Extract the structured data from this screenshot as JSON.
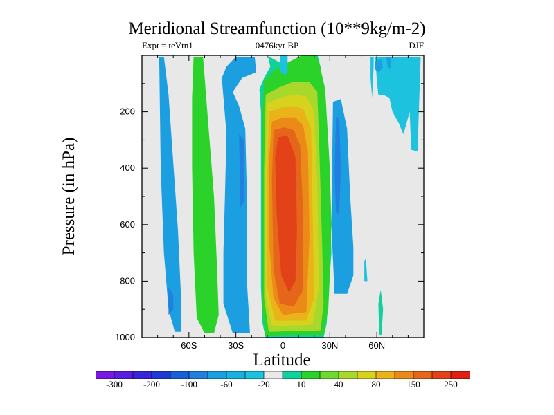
{
  "figure": {
    "title": "Meridional Streamfunction (10**9kg/m-2)",
    "subtitle_left": "Expt = teVtn1",
    "subtitle_center": "0476kyr BP",
    "subtitle_right": "DJF"
  },
  "chart_data": {
    "type": "contour-fill",
    "title": "Meridional Streamfunction (10**9kg/m-2)",
    "xlabel": "Latitude",
    "ylabel": "Pressure (in hPa)",
    "xlim": [
      -90,
      90
    ],
    "ylim": [
      1000,
      0
    ],
    "y_reversed": true,
    "x_ticks": [
      {
        "value": -60,
        "label": "60S"
      },
      {
        "value": -30,
        "label": "30S"
      },
      {
        "value": 0,
        "label": "0"
      },
      {
        "value": 30,
        "label": "30N"
      },
      {
        "value": 60,
        "label": "60N"
      }
    ],
    "y_ticks": [
      {
        "value": 200,
        "label": "200"
      },
      {
        "value": 400,
        "label": "400"
      },
      {
        "value": 600,
        "label": "600"
      },
      {
        "value": 800,
        "label": "800"
      },
      {
        "value": 1000,
        "label": "1000"
      }
    ],
    "background_level_color": "#e8e8e8",
    "colorbar": {
      "colors": [
        "#7a17e0",
        "#5a1ee0",
        "#3a24d8",
        "#1e3ad2",
        "#1a5ed8",
        "#1f80e0",
        "#1b9fe0",
        "#18b2e0",
        "#1dc3de",
        "#e9e9e9",
        "#12cf9e",
        "#2ad22a",
        "#6ed92e",
        "#a8d82c",
        "#d6d21e",
        "#eab31a",
        "#ec8a18",
        "#e5651a",
        "#e34118",
        "#e21e14"
      ],
      "labels": [
        "-300",
        "-200",
        "-100",
        "-60",
        "-20",
        "10",
        "40",
        "80",
        "150",
        "250"
      ]
    },
    "regions": [
      {
        "name": "sh-polar-negative-cell",
        "level": -20,
        "color": "#1b9fe0",
        "pts": [
          [
            -79,
            5
          ],
          [
            -76,
            5
          ],
          [
            -73,
            140
          ],
          [
            -70,
            380
          ],
          [
            -67,
            620
          ],
          [
            -65,
            860
          ],
          [
            -65,
            980
          ],
          [
            -69,
            980
          ],
          [
            -73,
            900
          ],
          [
            -76,
            700
          ],
          [
            -78,
            400
          ]
        ]
      },
      {
        "name": "sh-polar-inner",
        "level": -40,
        "color": "#1f80e0",
        "pts": [
          [
            -73,
            820
          ],
          [
            -70,
            850
          ],
          [
            -70,
            900
          ],
          [
            -73,
            920
          ]
        ]
      },
      {
        "name": "sh-green-cell",
        "level": 40,
        "color": "#2ad22a",
        "pts": [
          [
            -57,
            5
          ],
          [
            -51,
            5
          ],
          [
            -48,
            220
          ],
          [
            -44,
            500
          ],
          [
            -42,
            760
          ],
          [
            -41,
            920
          ],
          [
            -44,
            985
          ],
          [
            -50,
            985
          ],
          [
            -55,
            930
          ],
          [
            -57,
            700
          ],
          [
            -58,
            400
          ],
          [
            -58,
            150
          ]
        ]
      },
      {
        "name": "sh-blue-ferrel",
        "level": -20,
        "color": "#1b9fe0",
        "pts": [
          [
            -30,
            5
          ],
          [
            -18,
            5
          ],
          [
            -17,
            60
          ],
          [
            -26,
            80
          ],
          [
            -32,
            130
          ],
          [
            -28,
            180
          ],
          [
            -24,
            260
          ],
          [
            -23,
            500
          ],
          [
            -23,
            800
          ],
          [
            -21,
            985
          ],
          [
            -32,
            985
          ],
          [
            -38,
            880
          ],
          [
            -38,
            700
          ],
          [
            -37,
            500
          ],
          [
            -36,
            280
          ],
          [
            -39,
            80
          ],
          [
            -36,
            40
          ]
        ]
      },
      {
        "name": "sh-blue-ferrel-core",
        "level": -60,
        "color": "#1f80e0",
        "pts": [
          [
            -28,
            280
          ],
          [
            -25,
            300
          ],
          [
            -25,
            520
          ],
          [
            -27,
            540
          ]
        ]
      },
      {
        "name": "eq-band-10",
        "level": 10,
        "color": "#12cf9e",
        "pts": [
          [
            -12,
            -5
          ],
          [
            -10,
            -5
          ],
          [
            -8,
            40
          ],
          [
            -12,
            80
          ],
          [
            -15,
            120
          ],
          [
            -14,
            200
          ],
          [
            -14,
            600
          ],
          [
            -14,
            820
          ],
          [
            -13,
            950
          ],
          [
            -11,
            1000
          ],
          [
            26,
            1000
          ],
          [
            28,
            950
          ],
          [
            29,
            850
          ],
          [
            31,
            700
          ],
          [
            30,
            500
          ],
          [
            27,
            200
          ],
          [
            21,
            80
          ],
          [
            19,
            -5
          ],
          [
            22,
            -5
          ],
          [
            24,
            40
          ],
          [
            26,
            110
          ]
        ]
      },
      {
        "name": "eq-green",
        "level": 40,
        "color": "#2ad22a",
        "pts": [
          [
            -12,
            90
          ],
          [
            -5,
            50
          ],
          [
            5,
            20
          ],
          [
            12,
            0
          ],
          [
            20,
            -5
          ],
          [
            23,
            20
          ],
          [
            27,
            120
          ],
          [
            30,
            400
          ],
          [
            31,
            600
          ],
          [
            30,
            780
          ],
          [
            29,
            900
          ],
          [
            26,
            990
          ],
          [
            -11,
            995
          ],
          [
            -13,
            900
          ],
          [
            -13,
            500
          ],
          [
            -13,
            200
          ]
        ]
      },
      {
        "name": "eq-level-80",
        "level": 80,
        "color": "#a8d82c",
        "pts": [
          [
            -11,
            140
          ],
          [
            -3,
            115
          ],
          [
            6,
            95
          ],
          [
            17,
            95
          ],
          [
            22,
            130
          ],
          [
            23,
            280
          ],
          [
            25,
            650
          ],
          [
            26,
            880
          ],
          [
            24,
            975
          ],
          [
            -9,
            980
          ],
          [
            -12,
            860
          ],
          [
            -12,
            400
          ]
        ]
      },
      {
        "name": "eq-level-100",
        "level": 100,
        "color": "#d6d21e",
        "pts": [
          [
            -10,
            170
          ],
          [
            -2,
            150
          ],
          [
            7,
            140
          ],
          [
            15,
            145
          ],
          [
            20,
            200
          ],
          [
            22,
            450
          ],
          [
            23,
            820
          ],
          [
            19,
            955
          ],
          [
            -7,
            960
          ],
          [
            -11,
            850
          ],
          [
            -11,
            420
          ]
        ]
      },
      {
        "name": "eq-level-150",
        "level": 150,
        "color": "#eab31a",
        "pts": [
          [
            -9,
            200
          ],
          [
            -1,
            185
          ],
          [
            7,
            180
          ],
          [
            13,
            190
          ],
          [
            18,
            260
          ],
          [
            19,
            550
          ],
          [
            20,
            860
          ],
          [
            15,
            940
          ],
          [
            -5,
            940
          ],
          [
            -10,
            820
          ],
          [
            -10,
            420
          ]
        ]
      },
      {
        "name": "eq-level-200",
        "level": 200,
        "color": "#ec8a18",
        "pts": [
          [
            -7,
            235
          ],
          [
            0,
            220
          ],
          [
            8,
            220
          ],
          [
            13,
            250
          ],
          [
            16,
            340
          ],
          [
            17,
            640
          ],
          [
            15,
            910
          ],
          [
            0,
            920
          ],
          [
            -6,
            860
          ],
          [
            -9,
            650
          ],
          [
            -9,
            380
          ]
        ]
      },
      {
        "name": "eq-level-250",
        "level": 250,
        "color": "#e5651a",
        "pts": [
          [
            -6,
            265
          ],
          [
            1,
            255
          ],
          [
            7,
            265
          ],
          [
            11,
            320
          ],
          [
            13,
            560
          ],
          [
            13,
            830
          ],
          [
            7,
            890
          ],
          [
            -2,
            880
          ],
          [
            -6,
            760
          ],
          [
            -7,
            440
          ]
        ]
      },
      {
        "name": "eq-level-300",
        "level": 300,
        "color": "#e34118",
        "pts": [
          [
            -3,
            290
          ],
          [
            3,
            285
          ],
          [
            8,
            360
          ],
          [
            9,
            620
          ],
          [
            8,
            800
          ],
          [
            4,
            840
          ],
          [
            -1,
            780
          ],
          [
            -4,
            560
          ],
          [
            -5,
            360
          ]
        ]
      },
      {
        "name": "nh-blue-ferrel",
        "level": -20,
        "color": "#1b9fe0",
        "pts": [
          [
            32,
            165
          ],
          [
            37,
            155
          ],
          [
            41,
            260
          ],
          [
            43,
            500
          ],
          [
            45,
            680
          ],
          [
            45,
            780
          ],
          [
            41,
            845
          ],
          [
            33,
            845
          ],
          [
            31,
            600
          ]
        ]
      },
      {
        "name": "nh-blue-ferrel-core",
        "level": -40,
        "color": "#1f80e0",
        "pts": [
          [
            34,
            220
          ],
          [
            36,
            220
          ],
          [
            37,
            400
          ],
          [
            36,
            560
          ],
          [
            34,
            560
          ],
          [
            33,
            420
          ]
        ]
      },
      {
        "name": "nh-polar-negative",
        "level": -20,
        "color": "#1dc3de",
        "pts": [
          [
            59,
            5
          ],
          [
            88,
            5
          ],
          [
            86,
            340
          ],
          [
            82,
            335
          ],
          [
            81,
            200
          ],
          [
            77,
            280
          ],
          [
            74,
            240
          ],
          [
            70,
            200
          ],
          [
            68,
            150
          ],
          [
            64,
            140
          ],
          [
            61,
            140
          ],
          [
            60,
            90
          ]
        ]
      },
      {
        "name": "nh-polar-strip",
        "level": -20,
        "color": "#1dc3de",
        "pts": [
          [
            56,
            5
          ],
          [
            58,
            5
          ],
          [
            58,
            40
          ],
          [
            57,
            150
          ],
          [
            56,
            80
          ]
        ]
      },
      {
        "name": "nh-polar-dark",
        "level": -40,
        "color": "#1b9fe0",
        "pts": [
          [
            59,
            20
          ],
          [
            63,
            15
          ],
          [
            64,
            45
          ],
          [
            61,
            60
          ],
          [
            59,
            50
          ]
        ]
      },
      {
        "name": "nh-polar-dark-2",
        "level": -40,
        "color": "#1b9fe0",
        "pts": [
          [
            66,
            5
          ],
          [
            69,
            5
          ],
          [
            69,
            50
          ],
          [
            67,
            45
          ]
        ]
      },
      {
        "name": "tropics-top-cyan",
        "level": -20,
        "color": "#1dc3de",
        "pts": [
          [
            -2,
            -5
          ],
          [
            3,
            -5
          ],
          [
            3,
            55
          ],
          [
            2,
            70
          ],
          [
            -2,
            60
          ]
        ]
      },
      {
        "name": "nh-thin-cyan",
        "level": -20,
        "color": "#1dc3de",
        "pts": [
          [
            52,
            730
          ],
          [
            53,
            720
          ],
          [
            54,
            800
          ],
          [
            52,
            800
          ]
        ]
      },
      {
        "name": "nh-thin-green",
        "level": 10,
        "color": "#12cf9e",
        "pts": [
          [
            61,
            880
          ],
          [
            62.5,
            830
          ],
          [
            64,
            900
          ],
          [
            63,
            990
          ],
          [
            61.5,
            990
          ]
        ]
      }
    ]
  }
}
